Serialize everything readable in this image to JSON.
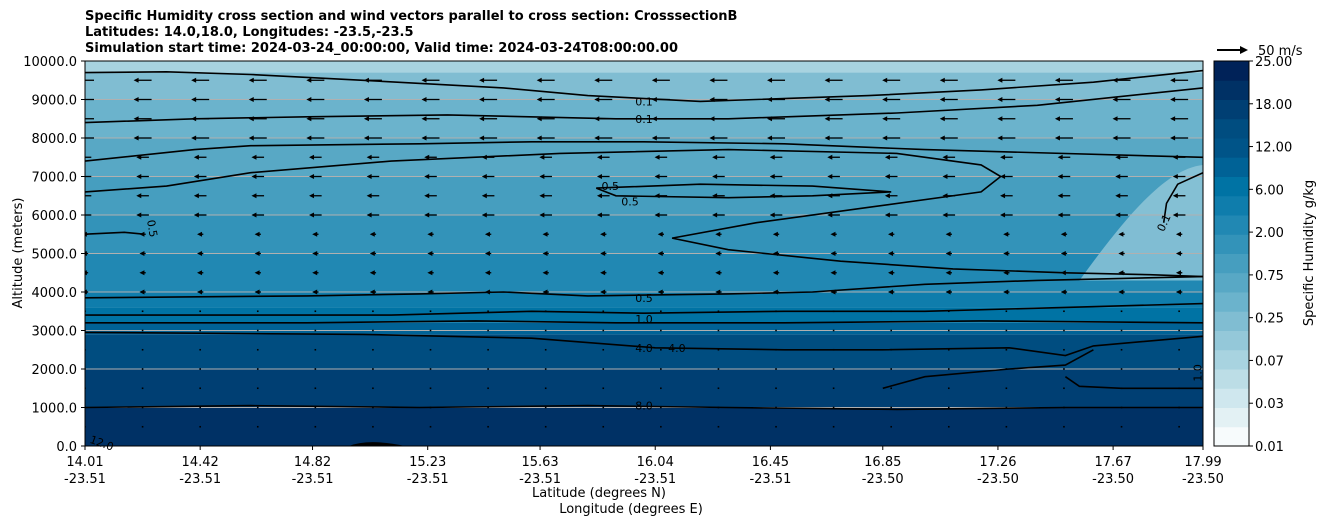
{
  "chart_data": {
    "type": "heatmap",
    "title_lines": [
      "Specific Humidity cross section and wind vectors parallel to cross section: CrosssectionB",
      "Latitudes: 14.0,18.0, Longitudes: -23.5,-23.5",
      "Simulation start time: 2024-03-24_00:00:00, Valid time: 2024-03-24T08:00:00.00"
    ],
    "ylabel": "Altitude (meters)",
    "xlabel_lat": "Latitude (degrees N)",
    "xlabel_lon": "Longitude (degrees E)",
    "ylim": [
      0,
      10000
    ],
    "y_ticks": [
      "0.0",
      "1000.0",
      "2000.0",
      "3000.0",
      "4000.0",
      "5000.0",
      "6000.0",
      "7000.0",
      "8000.0",
      "9000.0",
      "10000.0"
    ],
    "x_range": [
      14.01,
      17.99
    ],
    "x_ticks": [
      {
        "lat": "14.01",
        "lon": "-23.51",
        "value": 14.01
      },
      {
        "lat": "14.42",
        "lon": "-23.51",
        "value": 14.42
      },
      {
        "lat": "14.82",
        "lon": "-23.51",
        "value": 14.82
      },
      {
        "lat": "15.23",
        "lon": "-23.51",
        "value": 15.23
      },
      {
        "lat": "15.63",
        "lon": "-23.51",
        "value": 15.63
      },
      {
        "lat": "16.04",
        "lon": "-23.51",
        "value": 16.04
      },
      {
        "lat": "16.45",
        "lon": "-23.51",
        "value": 16.45
      },
      {
        "lat": "16.85",
        "lon": "-23.50",
        "value": 16.85
      },
      {
        "lat": "17.26",
        "lon": "-23.50",
        "value": 17.26
      },
      {
        "lat": "17.67",
        "lon": "-23.50",
        "value": 17.67
      },
      {
        "lat": "17.99",
        "lon": "-23.50",
        "value": 17.99
      }
    ],
    "grid": "horizontal",
    "colorbar": {
      "label": "Specific Humidity g/kg",
      "tick_labels": [
        "0.01",
        "0.03",
        "0.07",
        "0.25",
        "0.75",
        "2.00",
        "6.00",
        "12.00",
        "18.00",
        "25.00"
      ],
      "levels": 20,
      "colors": [
        "#f7fbfc",
        "#e3f1f4",
        "#cfe7ee",
        "#bcdde6",
        "#a8d3e0",
        "#94c8d9",
        "#80bdd2",
        "#6bb3cc",
        "#58a8c5",
        "#469ebf",
        "#3393b9",
        "#2188b3",
        "#0f7dac",
        "#0073a4",
        "#006296",
        "#005488",
        "#004d80",
        "#003f73",
        "#003165",
        "#002258"
      ]
    },
    "quiver_key": {
      "label": "50 m/s"
    },
    "contours": [
      {
        "label": "0.1",
        "value": 0.1
      },
      {
        "label": "0.5",
        "value": 0.5
      },
      {
        "label": "1.0",
        "value": 1.0
      },
      {
        "label": "4.0",
        "value": 4.0
      },
      {
        "label": "8.0",
        "value": 8.0
      },
      {
        "label": "12.0",
        "value": 12.0
      }
    ],
    "wind": {
      "direction": "westward",
      "max_speed_top": 20
    }
  }
}
